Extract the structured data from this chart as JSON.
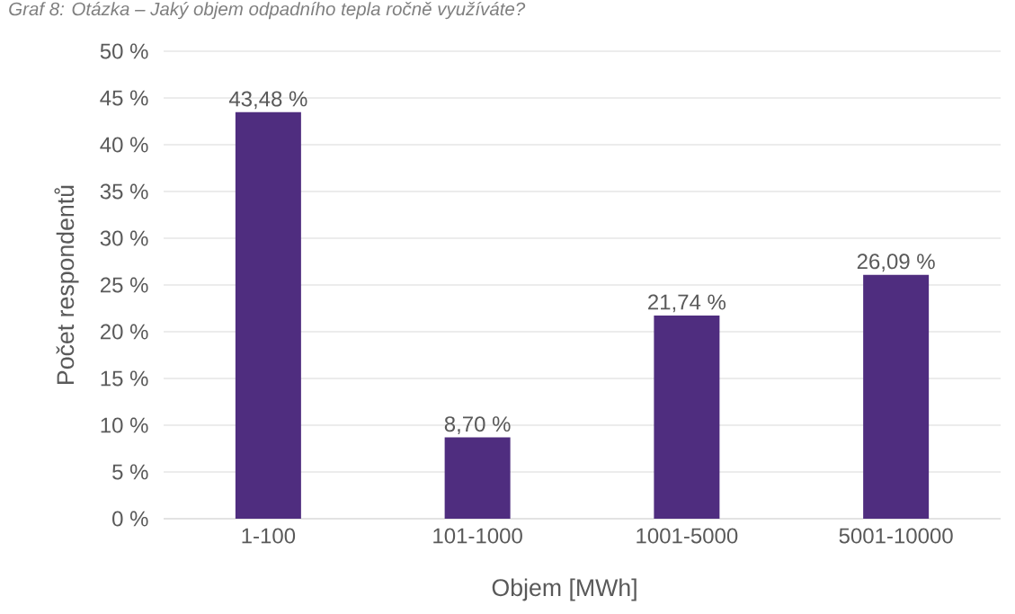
{
  "chart_data": {
    "type": "bar",
    "title": "Graf 8: Otázka – Jaký objem odpadního tepla ročně využíváte?",
    "xlabel": "Objem [MWh]",
    "ylabel": "Počet respondentů",
    "categories": [
      "1-100",
      "101-1000",
      "1001-5000",
      "5001-10000"
    ],
    "values": [
      43.48,
      8.7,
      21.74,
      26.09
    ],
    "value_labels": [
      "43,48 %",
      "8,70 %",
      "21,74 %",
      "26,09 %"
    ],
    "color": "#4f2d7f",
    "ylim": [
      0,
      50
    ],
    "yticks": [
      {
        "value": 0,
        "label": "0 %"
      },
      {
        "value": 5,
        "label": "5 %"
      },
      {
        "value": 10,
        "label": "10 %"
      },
      {
        "value": 15,
        "label": "15 %"
      },
      {
        "value": 20,
        "label": "20 %"
      },
      {
        "value": 25,
        "label": "25 %"
      },
      {
        "value": 30,
        "label": "30 %"
      },
      {
        "value": 35,
        "label": "35 %"
      },
      {
        "value": 40,
        "label": "40 %"
      },
      {
        "value": 45,
        "label": "45 %"
      },
      {
        "value": 50,
        "label": "50 %"
      }
    ],
    "grid": "y"
  }
}
